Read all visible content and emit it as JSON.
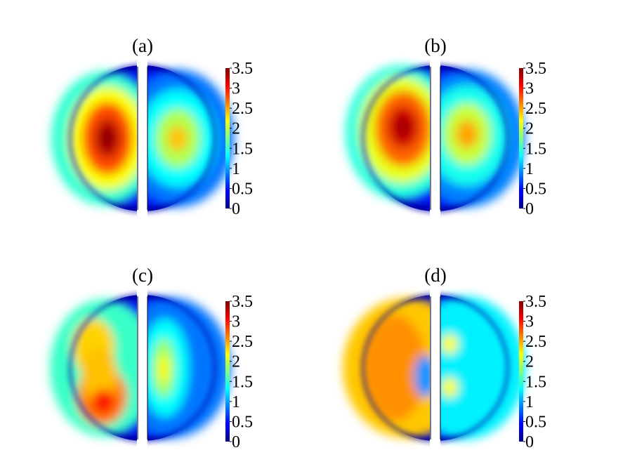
{
  "chart_data": [
    {
      "type": "heatmap",
      "panel_label": "(a)",
      "colorbar": {
        "range": [
          0,
          3.5
        ],
        "ticks": [
          0,
          0.5,
          1,
          1.5,
          2,
          2.5,
          3,
          3.5
        ],
        "tick_labels": [
          "0",
          "0.5",
          "1",
          "1.5",
          "2",
          "2.5",
          "3",
          "3.5"
        ],
        "colormap": "jet"
      },
      "left_half": {
        "peak_value": 3.5,
        "peak_location": "center-left",
        "shape": "elliptical"
      },
      "right_half": {
        "peak_value": 2.4,
        "peak_location": "center",
        "shape": "elliptical"
      }
    },
    {
      "type": "heatmap",
      "panel_label": "(b)",
      "colorbar": {
        "range": [
          0,
          3.5
        ],
        "ticks": [
          0,
          0.5,
          1,
          1.5,
          2,
          2.5,
          3,
          3.5
        ],
        "tick_labels": [
          "0",
          "0.5",
          "1",
          "1.5",
          "2",
          "2.5",
          "3",
          "3.5"
        ],
        "colormap": "jet"
      },
      "left_half": {
        "peak_value": 3.4,
        "peak_location": "upper-center-left",
        "shape": "elliptical"
      },
      "right_half": {
        "peak_value": 2.5,
        "peak_location": "center",
        "shape": "elliptical"
      }
    },
    {
      "type": "heatmap",
      "panel_label": "(c)",
      "colorbar": {
        "range": [
          0,
          3.5
        ],
        "ticks": [
          0,
          0.5,
          1,
          1.5,
          2,
          2.5,
          3,
          3.5
        ],
        "tick_labels": [
          "0",
          "0.5",
          "1",
          "1.5",
          "2",
          "2.5",
          "3",
          "3.5"
        ],
        "colormap": "jet"
      },
      "left_half": {
        "peak_value": 3.0,
        "peak_location": "lower-left",
        "shape": "crescent"
      },
      "right_half": {
        "peak_value": 2.2,
        "peak_location": "center",
        "shape": "elongated"
      }
    },
    {
      "type": "heatmap",
      "panel_label": "(d)",
      "colorbar": {
        "range": [
          0,
          3.5
        ],
        "ticks": [
          0,
          0.5,
          1,
          1.5,
          2,
          2.5,
          3,
          3.5
        ],
        "tick_labels": [
          "0",
          "0.5",
          "1",
          "1.5",
          "2",
          "2.5",
          "3",
          "3.5"
        ],
        "colormap": "jet"
      },
      "left_half": {
        "peak_value": 2.7,
        "peak_location": "outer-ring",
        "shape": "ring"
      },
      "right_half": {
        "peak_value": 2.3,
        "peak_location": "two-spots-near-center",
        "shape": "uniform-with-spots"
      }
    }
  ]
}
